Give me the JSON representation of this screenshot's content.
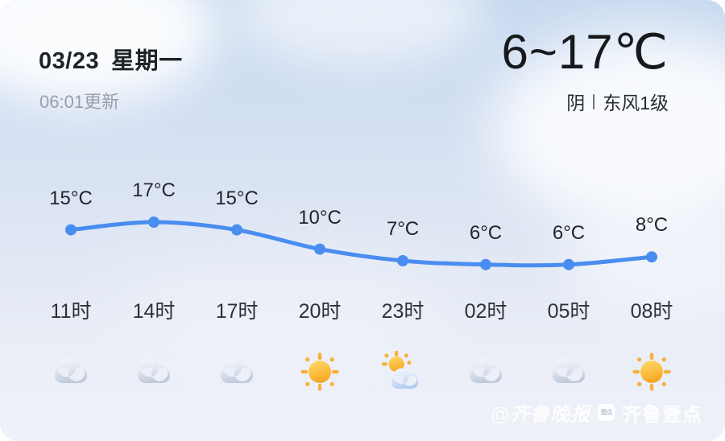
{
  "header": {
    "date": "03/23",
    "weekday": "星期一",
    "updated": "06:01更新",
    "temp_range": "6~17℃",
    "condition": "阴",
    "wind": "东风1级"
  },
  "chart_data": {
    "type": "line",
    "title": "",
    "x": [
      "11时",
      "14时",
      "17时",
      "20时",
      "23时",
      "02时",
      "05时",
      "08时"
    ],
    "series": [
      {
        "name": "hourly-temperature",
        "values": [
          15,
          17,
          15,
          10,
          7,
          6,
          6,
          8
        ]
      }
    ],
    "point_labels": [
      "15°C",
      "17°C",
      "15°C",
      "10°C",
      "7°C",
      "6°C",
      "6°C",
      "8°C"
    ],
    "icons": [
      "cloud",
      "cloud",
      "cloud",
      "sun",
      "partly-cloudy",
      "cloud",
      "cloud",
      "sun"
    ],
    "line_color": "#4a8df0",
    "ylim": [
      5,
      18
    ],
    "grid": false,
    "legend": false
  },
  "watermark": {
    "press_mark": "@",
    "press": "齐鲁晚报",
    "badge": "壹点",
    "app": "齐鲁壹点"
  },
  "colors": {
    "accent_blue": "#4a8df0",
    "text_dark": "#17191d",
    "text_gray": "#99a0ac",
    "sun_orange": "#f6a41f",
    "sun_yellow": "#ffd866",
    "cloud_gray": "#bfcadb"
  }
}
